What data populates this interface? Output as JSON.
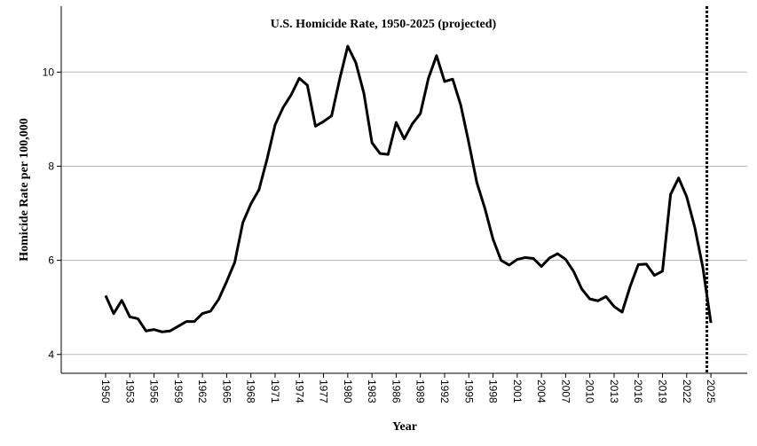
{
  "chart_data": {
    "type": "line",
    "title": "U.S. Homicide Rate, 1950-2025 (projected)",
    "xlabel": "Year",
    "ylabel": "Homicide Rate per 100,000",
    "xlim": [
      1944.5,
      2029.5
    ],
    "ylim": [
      3.6,
      11.4
    ],
    "y_ticks": [
      4,
      6,
      8,
      10
    ],
    "x_ticks": [
      1950,
      1953,
      1956,
      1959,
      1962,
      1965,
      1968,
      1971,
      1974,
      1977,
      1980,
      1983,
      1986,
      1989,
      1992,
      1995,
      1998,
      2001,
      2004,
      2007,
      2010,
      2013,
      2016,
      2019,
      2022,
      2025
    ],
    "x_tick_labels": [
      "1950",
      "1953",
      "1956",
      "1959",
      "1962",
      "1965",
      "1968",
      "1971",
      "1974",
      "1977",
      "1980",
      "1983",
      "1986",
      "1989",
      "1992",
      "1995",
      "1998",
      "2001",
      "2004",
      "2007",
      "2010",
      "2013",
      "2016",
      "2019",
      "2022",
      "2025"
    ],
    "grid": "horizontal",
    "reference_line": {
      "x": 2024.5,
      "style": "dotted"
    },
    "series": [
      {
        "color": "#000000",
        "x": [
          1950,
          1951,
          1952,
          1953,
          1954,
          1955,
          1956,
          1957,
          1958,
          1959,
          1960,
          1961,
          1962,
          1963,
          1964,
          1965,
          1966,
          1967,
          1968,
          1969,
          1970,
          1971,
          1972,
          1973,
          1974,
          1975,
          1976,
          1977,
          1978,
          1979,
          1980,
          1981,
          1982,
          1983,
          1984,
          1985,
          1986,
          1987,
          1988,
          1989,
          1990,
          1991,
          1992,
          1993,
          1994,
          1995,
          1996,
          1997,
          1998,
          1999,
          2000,
          2001,
          2002,
          2003,
          2004,
          2005,
          2006,
          2007,
          2008,
          2009,
          2010,
          2011,
          2012,
          2013,
          2014,
          2015,
          2016,
          2017,
          2018,
          2019,
          2020,
          2021,
          2022,
          2023,
          2024,
          2025
        ],
        "values": [
          5.25,
          4.87,
          5.15,
          4.8,
          4.76,
          4.5,
          4.53,
          4.48,
          4.5,
          4.6,
          4.7,
          4.7,
          4.87,
          4.92,
          5.17,
          5.55,
          5.96,
          6.8,
          7.2,
          7.5,
          8.15,
          8.88,
          9.25,
          9.52,
          9.87,
          9.72,
          8.85,
          8.95,
          9.07,
          9.85,
          10.55,
          10.2,
          9.55,
          8.5,
          8.27,
          8.25,
          8.93,
          8.58,
          8.9,
          9.12,
          9.87,
          10.35,
          9.8,
          9.85,
          9.3,
          8.5,
          7.65,
          7.1,
          6.45,
          6.0,
          5.9,
          6.02,
          6.06,
          6.04,
          5.87,
          6.05,
          6.14,
          6.02,
          5.76,
          5.39,
          5.18,
          5.14,
          5.23,
          5.02,
          4.9,
          5.45,
          5.91,
          5.92,
          5.68,
          5.77,
          7.4,
          7.75,
          7.35,
          6.7,
          5.85,
          4.67
        ]
      }
    ]
  }
}
